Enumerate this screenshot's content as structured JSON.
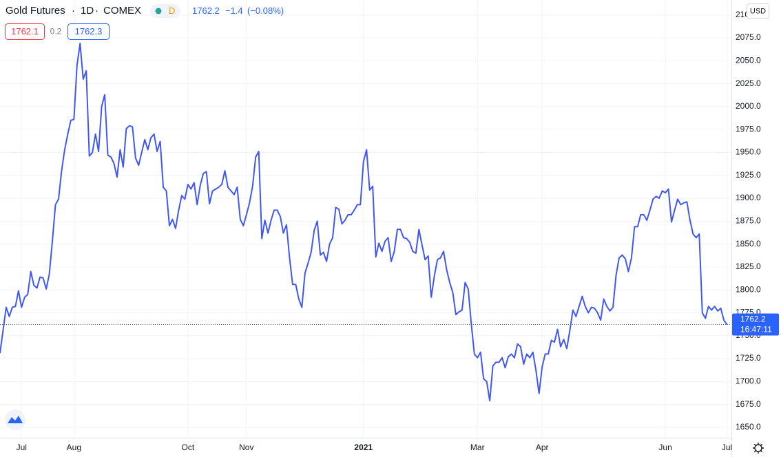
{
  "chart_data": {
    "type": "line",
    "title": "Gold Futures",
    "interval": "1D",
    "exchange": "COMEX",
    "badge": "D",
    "last_value": 1762.2,
    "change": "−1.4",
    "change_pct": "(−0.08%)",
    "bid": "1762.1",
    "spread": "0.2",
    "ask": "1762.3",
    "currency": "USD",
    "countdown": "16:47:11",
    "color": "#4157f5",
    "grid": true,
    "xlim": [
      0,
      237
    ],
    "ylim": [
      1638.7,
      2116.3
    ],
    "xticks": [
      {
        "value": 7,
        "label": "Jul"
      },
      {
        "value": 24,
        "label": "Aug"
      },
      {
        "value": 61,
        "label": "Oct"
      },
      {
        "value": 80,
        "label": "Nov"
      },
      {
        "value": 118,
        "label": "2021"
      },
      {
        "value": 155,
        "label": "Mar"
      },
      {
        "value": 176,
        "label": "Apr"
      },
      {
        "value": 216,
        "label": "Jun"
      },
      {
        "value": 236,
        "label": "Jul"
      }
    ],
    "yticks": [
      {
        "value": 1650,
        "label": "1650.0"
      },
      {
        "value": 1675,
        "label": "1675.0"
      },
      {
        "value": 1700,
        "label": "1700.0"
      },
      {
        "value": 1725,
        "label": "1725.0"
      },
      {
        "value": 1750,
        "label": "1750.0"
      },
      {
        "value": 1775,
        "label": "1775.0"
      },
      {
        "value": 1800,
        "label": "1800.0"
      },
      {
        "value": 1825,
        "label": "1825.0"
      },
      {
        "value": 1850,
        "label": "1850.0"
      },
      {
        "value": 1875,
        "label": "1875.0"
      },
      {
        "value": 1900,
        "label": "1900.0"
      },
      {
        "value": 1925,
        "label": "1925.0"
      },
      {
        "value": 1950,
        "label": "1950.0"
      },
      {
        "value": 1975,
        "label": "1975.0"
      },
      {
        "value": 2000,
        "label": "2000.0"
      },
      {
        "value": 2025,
        "label": "2025.0"
      },
      {
        "value": 2050,
        "label": "2050.0"
      },
      {
        "value": 2075,
        "label": "2075.0"
      },
      {
        "value": 2100,
        "label": "2100.0"
      }
    ],
    "values": [
      1731,
      1756,
      1781,
      1771,
      1781,
      1782,
      1799,
      1781,
      1792,
      1795,
      1820,
      1805,
      1802,
      1814,
      1813,
      1801,
      1817,
      1853,
      1893,
      1899,
      1930,
      1953,
      1970,
      1985,
      1986,
      2045,
      2069,
      2030,
      2039,
      1946,
      1950,
      1970,
      1951,
      2000,
      2013,
      1947,
      1945,
      1938,
      1923,
      1953,
      1934,
      1976,
      1979,
      1978,
      1944,
      1936,
      1950,
      1964,
      1953,
      1966,
      1970,
      1951,
      1962,
      1912,
      1908,
      1870,
      1877,
      1867,
      1887,
      1903,
      1899,
      1915,
      1910,
      1917,
      1893,
      1914,
      1927,
      1929,
      1894,
      1908,
      1910,
      1912,
      1915,
      1930,
      1912,
      1908,
      1904,
      1912,
      1877,
      1870,
      1882,
      1895,
      1913,
      1945,
      1951,
      1856,
      1876,
      1862,
      1876,
      1887,
      1887,
      1880,
      1862,
      1871,
      1835,
      1806,
      1806,
      1790,
      1781,
      1818,
      1829,
      1841,
      1865,
      1875,
      1838,
      1841,
      1831,
      1850,
      1857,
      1890,
      1888,
      1872,
      1876,
      1882,
      1882,
      1887,
      1893,
      1893,
      1940,
      1953,
      1909,
      1913,
      1836,
      1851,
      1842,
      1853,
      1857,
      1831,
      1842,
      1866,
      1866,
      1857,
      1856,
      1852,
      1842,
      1840,
      1866,
      1849,
      1833,
      1837,
      1792,
      1815,
      1833,
      1835,
      1842,
      1822,
      1808,
      1797,
      1773,
      1776,
      1778,
      1808,
      1801,
      1763,
      1730,
      1726,
      1732,
      1703,
      1700,
      1679,
      1717,
      1721,
      1721,
      1726,
      1715,
      1727,
      1730,
      1726,
      1741,
      1738,
      1719,
      1730,
      1726,
      1732,
      1712,
      1687,
      1716,
      1730,
      1730,
      1745,
      1743,
      1757,
      1738,
      1746,
      1736,
      1756,
      1778,
      1771,
      1782,
      1793,
      1782,
      1775,
      1781,
      1780,
      1775,
      1767,
      1790,
      1782,
      1777,
      1781,
      1816,
      1835,
      1838,
      1834,
      1820,
      1835,
      1869,
      1869,
      1882,
      1882,
      1876,
      1887,
      1899,
      1902,
      1900,
      1908,
      1906,
      1910,
      1874,
      1887,
      1899,
      1893,
      1895,
      1896,
      1876,
      1861,
      1857,
      1861,
      1775,
      1769,
      1782,
      1778,
      1782,
      1777,
      1780,
      1767,
      1762.2
    ]
  }
}
